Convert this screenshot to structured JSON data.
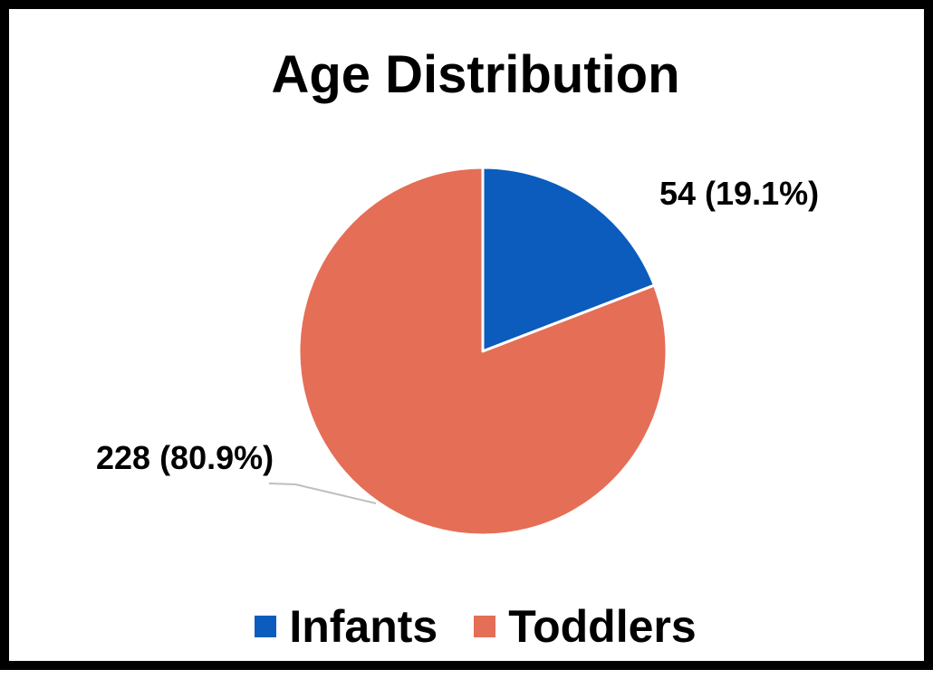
{
  "chart_data": {
    "type": "pie",
    "title": "Age Distribution",
    "categories": [
      "Infants",
      "Toddlers"
    ],
    "values": [
      54,
      228
    ],
    "percentages": [
      "19.1%",
      "80.9%"
    ],
    "data_labels": [
      "54 (19.1%)",
      "228 (80.9%)"
    ],
    "colors": [
      "#0B5CBD",
      "#E56E57"
    ],
    "legend_position": "bottom",
    "slice_border_color": "#FFFFFF",
    "leader_line_color": "#BFBFBF"
  }
}
